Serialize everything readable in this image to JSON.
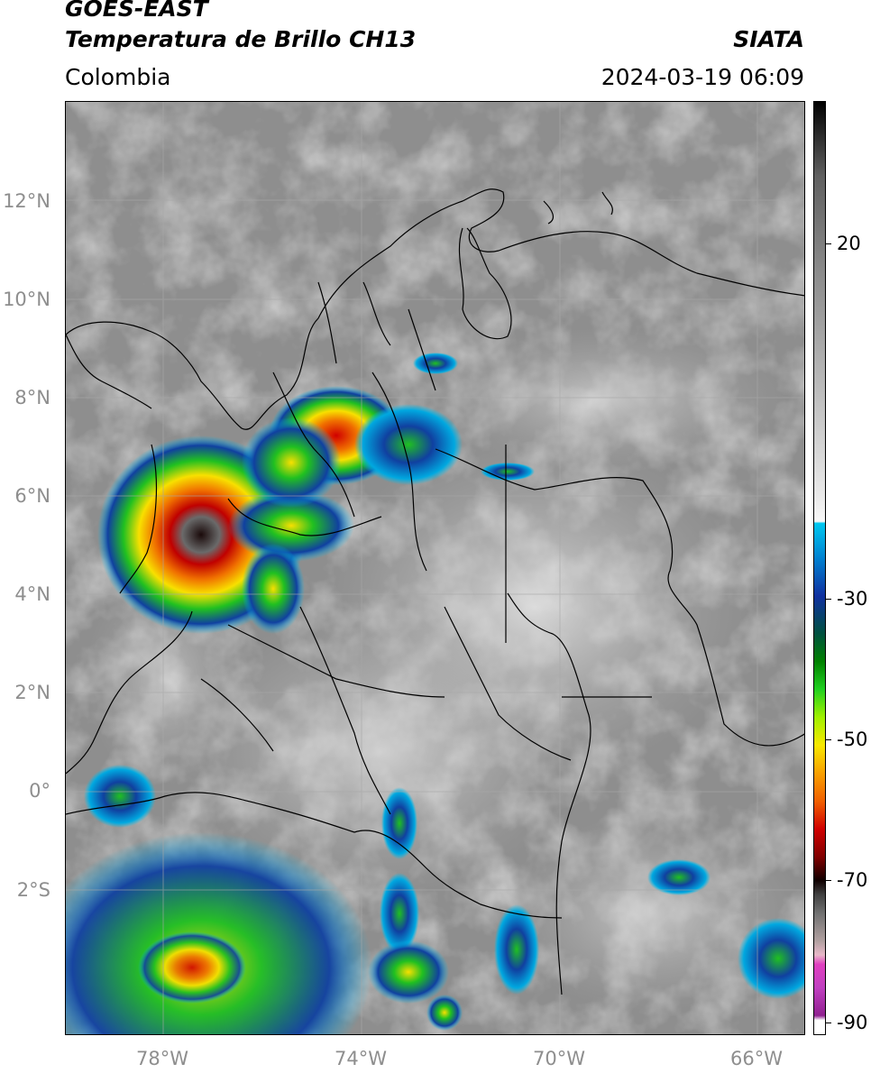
{
  "header": {
    "satellite": "GOES-EAST",
    "product": "Temperatura de Brillo CH13",
    "region": "Colombia",
    "source": "SIATA",
    "datetime": "2024-03-19 06:09"
  },
  "map": {
    "lat_labels": [
      "12°N",
      "10°N",
      "8°N",
      "6°N",
      "4°N",
      "2°N",
      "0°",
      "2°S"
    ],
    "lon_labels": [
      "78°W",
      "74°W",
      "70°W",
      "66°W"
    ]
  },
  "colorbar": {
    "labels": [
      "20",
      "-30",
      "-50",
      "-70",
      "-90"
    ],
    "colors": {
      "warm_gray": "#8a8a8a",
      "cold_cyan": "#00c8f0",
      "blue": "#1030a0",
      "green": "#20d020",
      "yellow": "#f8e800",
      "orange": "#f88000",
      "red": "#d00000",
      "dark": "#200000",
      "magenta": "#c040c0"
    }
  }
}
